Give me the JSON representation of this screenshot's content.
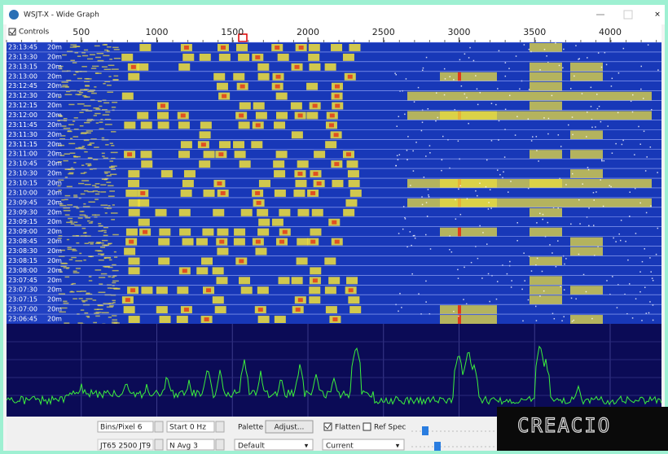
{
  "window": {
    "title": "WSJT-X - Wide Graph",
    "controls_label": "Controls"
  },
  "frequency_scale": {
    "ticks": [
      500,
      1000,
      1500,
      2000,
      2500,
      3000,
      3500,
      4000
    ]
  },
  "waterfall": {
    "band": "20m",
    "times": [
      "23:13:45",
      "23:13:30",
      "23:13:15",
      "23:13:00",
      "23:12:45",
      "23:12:30",
      "23:12:15",
      "23:12:00",
      "23:11:45",
      "23:11:30",
      "23:11:15",
      "23:11:00",
      "23:10:45",
      "23:10:30",
      "23:10:15",
      "23:10:00",
      "23:09:45",
      "23:09:30",
      "23:09:15",
      "23:09:00",
      "23:08:45",
      "23:08:30",
      "23:08:15",
      "23:08:00",
      "23:07:45",
      "23:07:30",
      "23:07:15",
      "23:07:00",
      "23:06:45"
    ]
  },
  "controls": {
    "bins_pixel": "Bins/Pixel 6",
    "start": "Start 0 Hz",
    "palette": "Palette",
    "adjust": "Adjust...",
    "flatten": "Flatten",
    "ref_spec": "Ref Spec",
    "mode": "JT65 2500 JT9",
    "n_avg": "N Avg 3",
    "palette_choice": "Default",
    "spectrum_choice": "Current"
  },
  "watermark": "CREACIO"
}
